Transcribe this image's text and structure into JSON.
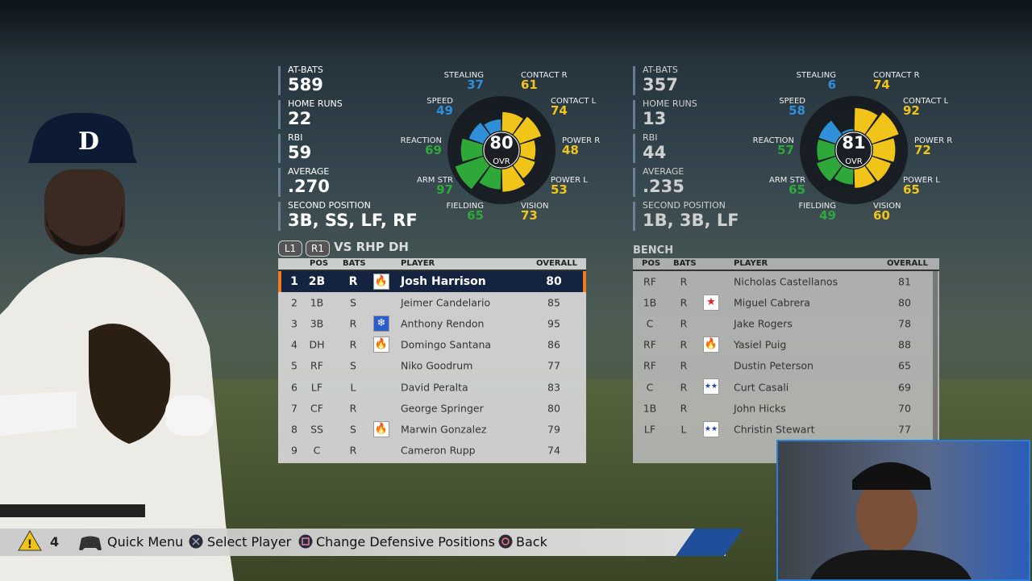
{
  "left_player": {
    "stats": [
      {
        "label": "AT-BATS",
        "value": 589
      },
      {
        "label": "HOME RUNS",
        "value": 22
      },
      {
        "label": "RBI",
        "value": 59
      },
      {
        "label": "AVERAGE",
        "value": ".270"
      },
      {
        "label": "SECOND POSITION",
        "value": "3B, SS, LF, RF"
      }
    ],
    "ratings": {
      "overall": 80,
      "overall_label": "OVR",
      "attributes": [
        {
          "label": "CONTACT R",
          "value": 61,
          "color": "#f0c419"
        },
        {
          "label": "CONTACT L",
          "value": 74,
          "color": "#f0c419"
        },
        {
          "label": "POWER R",
          "value": 48,
          "color": "#f0c419"
        },
        {
          "label": "POWER L",
          "value": 53,
          "color": "#f0c419"
        },
        {
          "label": "VISION",
          "value": 73,
          "color": "#f0c419"
        },
        {
          "label": "FIELDING",
          "value": 65,
          "color": "#2fa83a"
        },
        {
          "label": "ARM STR",
          "value": 97,
          "color": "#2fa83a"
        },
        {
          "label": "REACTION",
          "value": 69,
          "color": "#2fa83a"
        },
        {
          "label": "SPEED",
          "value": 49,
          "color": "#2f8fd8"
        },
        {
          "label": "STEALING",
          "value": 37,
          "color": "#2f8fd8"
        }
      ]
    }
  },
  "right_player": {
    "stats": [
      {
        "label": "AT-BATS",
        "value": 357
      },
      {
        "label": "HOME RUNS",
        "value": 13
      },
      {
        "label": "RBI",
        "value": 44
      },
      {
        "label": "AVERAGE",
        "value": ".235"
      },
      {
        "label": "SECOND POSITION",
        "value": "1B, 3B, LF"
      }
    ],
    "ratings": {
      "overall": 81,
      "overall_label": "OVR",
      "attributes": [
        {
          "label": "CONTACT R",
          "value": 74,
          "color": "#f0c419"
        },
        {
          "label": "CONTACT L",
          "value": 92,
          "color": "#f0c419"
        },
        {
          "label": "POWER R",
          "value": 72,
          "color": "#f0c419"
        },
        {
          "label": "POWER L",
          "value": 65,
          "color": "#f0c419"
        },
        {
          "label": "VISION",
          "value": 60,
          "color": "#f0c419"
        },
        {
          "label": "FIELDING",
          "value": 49,
          "color": "#2fa83a"
        },
        {
          "label": "ARM STR",
          "value": 65,
          "color": "#2fa83a"
        },
        {
          "label": "REACTION",
          "value": 57,
          "color": "#2fa83a"
        },
        {
          "label": "SPEED",
          "value": 58,
          "color": "#2f8fd8"
        },
        {
          "label": "STEALING",
          "value": 6,
          "color": "#2f8fd8"
        }
      ]
    }
  },
  "lineup": {
    "tabs": [
      "L1",
      "R1"
    ],
    "title": "VS RHP DH",
    "columns": [
      "POS",
      "BATS",
      "PLAYER",
      "OVERALL"
    ],
    "rows": [
      [
        1,
        "2B",
        "R",
        "Josh Harrison",
        80
      ],
      [
        2,
        "1B",
        "S",
        "Jeimer Candelario",
        85
      ],
      [
        3,
        "3B",
        "R",
        "Anthony Rendon",
        95
      ],
      [
        4,
        "DH",
        "R",
        "Domingo Santana",
        86
      ],
      [
        5,
        "RF",
        "S",
        "Niko Goodrum",
        77
      ],
      [
        6,
        "LF",
        "L",
        "David Peralta",
        83
      ],
      [
        7,
        "CF",
        "R",
        "George Springer",
        80
      ],
      [
        8,
        "SS",
        "S",
        "Marwin Gonzalez",
        79
      ],
      [
        9,
        "C",
        "R",
        "Cameron Rupp",
        74
      ]
    ]
  },
  "bench": {
    "title": "BENCH",
    "columns": [
      "POS",
      "BATS",
      "PLAYER",
      "OVERALL"
    ],
    "rows": [
      [
        "RF",
        "R",
        "Nicholas Castellanos",
        81
      ],
      [
        "1B",
        "R",
        "Miguel Cabrera",
        80
      ],
      [
        "C",
        "R",
        "Jake Rogers",
        78
      ],
      [
        "RF",
        "R",
        "Yasiel Puig",
        88
      ],
      [
        "RF",
        "R",
        "Dustin Peterson",
        65
      ],
      [
        "C",
        "R",
        "Curt Casali",
        69
      ],
      [
        "1B",
        "R",
        "John Hicks",
        70
      ],
      [
        "LF",
        "L",
        "Christin Stewart",
        77
      ]
    ]
  },
  "footer": {
    "alert_count": 4,
    "actions": [
      "Quick Menu",
      "Select Player",
      "Change Defensive Positions",
      "Back"
    ]
  }
}
